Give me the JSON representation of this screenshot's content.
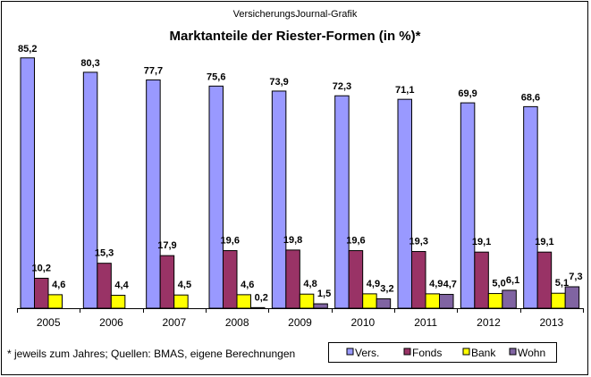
{
  "chart_data": {
    "type": "bar",
    "source_label": "VersicherungsJournal-Grafik",
    "title": "Marktanteile der Riester-Formen (in %)*",
    "footnote": "* jeweils zum Jahres; Quellen: BMAS,  eigene Berechnungen",
    "categories": [
      "2005",
      "2006",
      "2007",
      "2008",
      "2009",
      "2010",
      "2011",
      "2012",
      "2013"
    ],
    "series": [
      {
        "name": "Vers.",
        "color": "#9999FF",
        "values": [
          85.2,
          80.3,
          77.7,
          75.6,
          73.9,
          72.3,
          71.1,
          69.9,
          68.6
        ]
      },
      {
        "name": "Fonds",
        "color": "#993366",
        "values": [
          10.2,
          15.3,
          17.9,
          19.6,
          19.8,
          19.6,
          19.3,
          19.1,
          19.1
        ]
      },
      {
        "name": "Bank",
        "color": "#FFFF00",
        "values": [
          4.6,
          4.4,
          4.5,
          4.6,
          4.8,
          4.9,
          4.9,
          5.0,
          5.1
        ]
      },
      {
        "name": "Wohn",
        "color": "#8064A2",
        "values": [
          null,
          null,
          null,
          0.2,
          1.5,
          3.2,
          4.7,
          6.1,
          7.3
        ]
      }
    ],
    "ylim": [
      0,
      90
    ],
    "grid": false,
    "legend_position": "bottom-right",
    "data_labels": true
  }
}
